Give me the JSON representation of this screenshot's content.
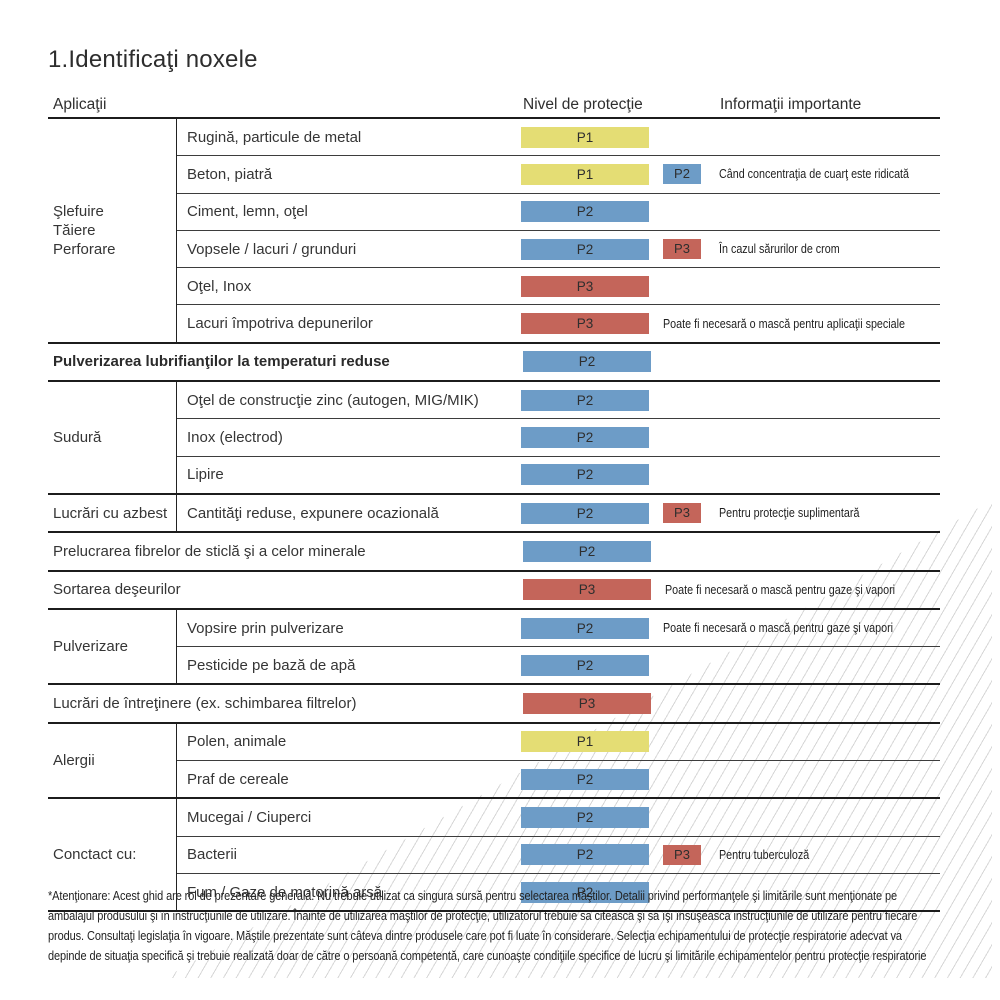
{
  "title": "1.Identificaţi noxele",
  "columns": {
    "applications": "Aplicaţii",
    "protection_level": "Nivel de protecţie",
    "important_info": "Informaţii importante"
  },
  "badge_colors": {
    "P1": "#e4dd74",
    "P2": "#6d9cc7",
    "P3": "#c4655a"
  },
  "table": {
    "sections": [
      {
        "category": "Şlefuire\nTăiere\nPerforare",
        "rows": [
          {
            "label": "Rugină, particule de metal",
            "badge": "P1"
          },
          {
            "label": "Beton, piatră",
            "badge": "P1",
            "badge2": "P2",
            "note": "Când concentraţia de cuarţ este ridicată"
          },
          {
            "label": "Ciment, lemn, oţel",
            "badge": "P2"
          },
          {
            "label": "Vopsele / lacuri / grunduri",
            "badge": "P2",
            "badge2": "P3",
            "note": "În cazul sărurilor de crom"
          },
          {
            "label": "Oţel, Inox",
            "badge": "P3"
          },
          {
            "label": "Lacuri împotriva depunerilor",
            "badge": "P3",
            "note": "Poate fi necesară o mască pentru aplicaţii speciale"
          }
        ]
      },
      {
        "category": null,
        "bold": true,
        "rows": [
          {
            "label": "Pulverizarea lubrifianţilor la temperaturi reduse",
            "badge": "P2"
          }
        ]
      },
      {
        "category": "Sudură",
        "rows": [
          {
            "label": "Oţel de construcţie zinc (autogen, MIG/MIK)",
            "badge": "P2"
          },
          {
            "label": "Inox (electrod)",
            "badge": "P2"
          },
          {
            "label": "Lipire",
            "badge": "P2"
          }
        ]
      },
      {
        "category": "Lucrări cu azbest",
        "rows": [
          {
            "label": "Cantităţi reduse, expunere ocazională",
            "badge": "P2",
            "badge2": "P3",
            "note": "Pentru protecţie suplimentară"
          }
        ]
      },
      {
        "category": null,
        "rows": [
          {
            "label": "Prelucrarea fibrelor de sticlă şi a celor minerale",
            "badge": "P2"
          }
        ]
      },
      {
        "category": null,
        "rows": [
          {
            "label": "Sortarea deşeurilor",
            "badge": "P3",
            "note": "Poate fi necesară o mască pentru gaze şi vapori"
          }
        ]
      },
      {
        "category": "Pulverizare",
        "rows": [
          {
            "label": "Vopsire prin pulverizare",
            "badge": "P2",
            "note": "Poate fi necesară o mască pentru gaze şi vapori"
          },
          {
            "label": "Pesticide pe bază de apă",
            "badge": "P2"
          }
        ]
      },
      {
        "category": null,
        "rows": [
          {
            "label": "Lucrări de întreţinere (ex. schimbarea filtrelor)",
            "badge": "P3"
          }
        ]
      },
      {
        "category": "Alergii",
        "rows": [
          {
            "label": "Polen, animale",
            "badge": "P1"
          },
          {
            "label": "Praf de cereale",
            "badge": "P2"
          }
        ]
      },
      {
        "category": "Conctact cu:",
        "rows": [
          {
            "label": "Mucegai / Ciuperci",
            "badge": "P2"
          },
          {
            "label": "Bacterii",
            "badge": "P2",
            "badge2": "P3",
            "note": "Pentru tuberculoză"
          },
          {
            "label": "Fum / Gaze de motorină arsă",
            "badge": "P2"
          }
        ]
      }
    ]
  },
  "footnote": "*Atenţionare: Acest ghid are rol de prezentare generală. Nu trebuie utilizat ca singura sursă pentru selectarea măştilor. Detalii privind performanţele şi limitările sunt menţionate pe ambalajul produsului şi în instrucţiunile de utilizare. Înainte de utilizarea măştilor de protecţie, utilizatorul trebuie să citească şi să îşi însuşească instrucţiunile de utilizare pentru fiecare produs. Consultaţi legislaţia în vigoare. Măştile prezentate sunt câteva dintre produsele care pot fi luate în considerare. Selecţia echipamentului de protecţie respiratorie adecvat va depinde de situaţia specifică şi trebuie realizată doar de către o persoană competentă, care cunoaşte condiţiile specifice de lucru şi limitările echipamentelor pentru protecţie respiratorie"
}
